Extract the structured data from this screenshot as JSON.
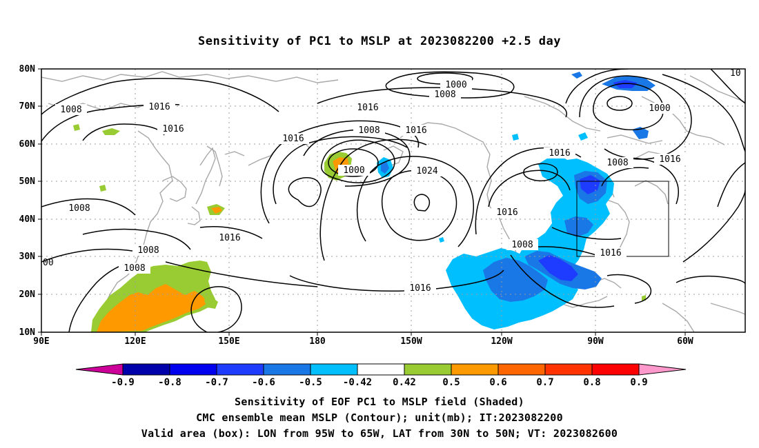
{
  "title": "Sensitivity of PC1 to MSLP at 2023082200 +2.5 day",
  "lat_labels": [
    "80N",
    "70N",
    "60N",
    "50N",
    "40N",
    "30N",
    "20N",
    "10N"
  ],
  "lon_labels": [
    "90E",
    "120E",
    "150E",
    "180",
    "150W",
    "120W",
    "90W",
    "60W"
  ],
  "colorbar": {
    "labels": [
      "-0.9",
      "-0.8",
      "-0.7",
      "-0.6",
      "-0.5",
      "-0.42",
      "0.42",
      "0.5",
      "0.6",
      "0.7",
      "0.8",
      "0.9"
    ],
    "colors": [
      "#cc0099",
      "#0000aa",
      "#0000ee",
      "#1e3cff",
      "#1a78e6",
      "#00bfff",
      "#ffffff",
      "#99cc33",
      "#ff9900",
      "#ff6600",
      "#ff3300",
      "#ff0000",
      "#ff99cc"
    ]
  },
  "contour_labels": [
    {
      "text": "1000"
    },
    {
      "text": "1008"
    },
    {
      "text": "1000"
    },
    {
      "text": "1008"
    },
    {
      "text": "1016"
    },
    {
      "text": "1016"
    },
    {
      "text": "1016"
    },
    {
      "text": "1008"
    },
    {
      "text": "1016"
    },
    {
      "text": "1016"
    },
    {
      "text": "1024"
    },
    {
      "text": "1000"
    },
    {
      "text": "1016"
    },
    {
      "text": "1008"
    },
    {
      "text": "1016"
    },
    {
      "text": "1016"
    },
    {
      "text": "1008"
    },
    {
      "text": "1016"
    },
    {
      "text": "1016"
    },
    {
      "text": "1008"
    },
    {
      "text": "1008"
    },
    {
      "text": "1008"
    },
    {
      "text": "1016"
    },
    {
      "text": "10"
    },
    {
      "text": "00"
    }
  ],
  "captions": {
    "line1": "Sensitivity of EOF PC1 to MSLP field (Shaded)",
    "line2": "CMC ensemble mean MSLP (Contour); unit(mb); IT:2023082200",
    "line3": "Valid area (box): LON from 95W to 65W, LAT from 30N to 50N; VT: 2023082600"
  },
  "valid_box": {
    "lon_min": "95W",
    "lon_max": "65W",
    "lat_min": "30N",
    "lat_max": "50N"
  }
}
